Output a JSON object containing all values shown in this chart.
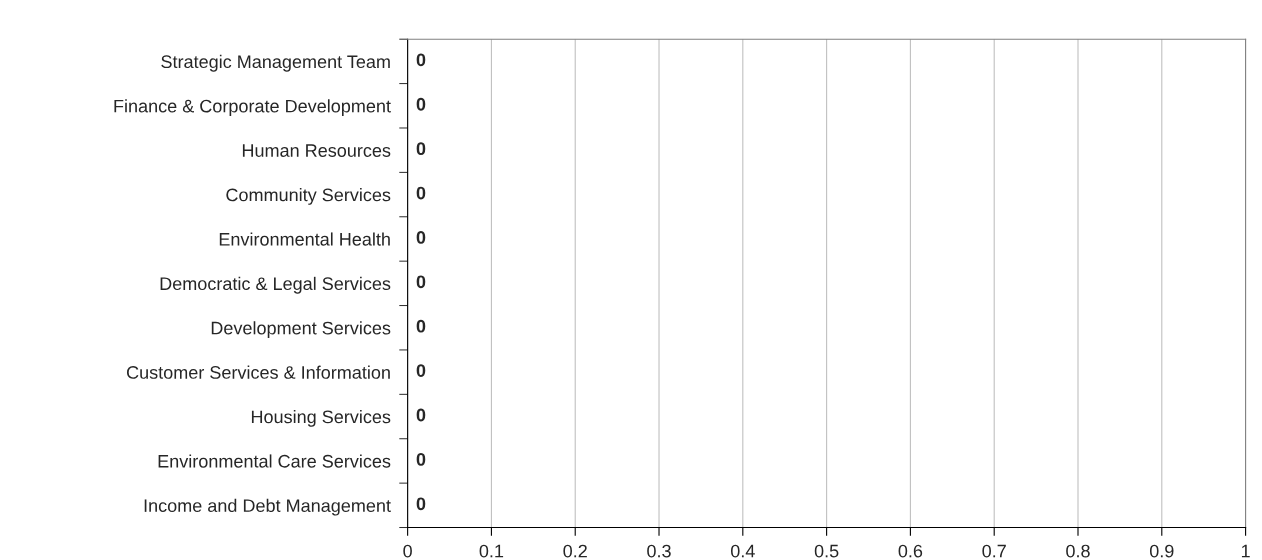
{
  "chart_data": {
    "type": "bar",
    "orientation": "horizontal",
    "categories": [
      "Strategic Management Team",
      "Finance & Corporate Development",
      "Human Resources",
      "Community Services",
      "Environmental Health",
      "Democratic & Legal Services",
      "Development Services",
      "Customer Services & Information",
      "Housing Services",
      "Environmental Care Services",
      "Income and Debt Management"
    ],
    "values": [
      0,
      0,
      0,
      0,
      0,
      0,
      0,
      0,
      0,
      0,
      0
    ],
    "xlim": [
      0,
      1
    ],
    "xticks": [
      0,
      0.1,
      0.2,
      0.3,
      0.4,
      0.5,
      0.6,
      0.7,
      0.8,
      0.9,
      1
    ],
    "grid": "x",
    "data_labels": true
  }
}
